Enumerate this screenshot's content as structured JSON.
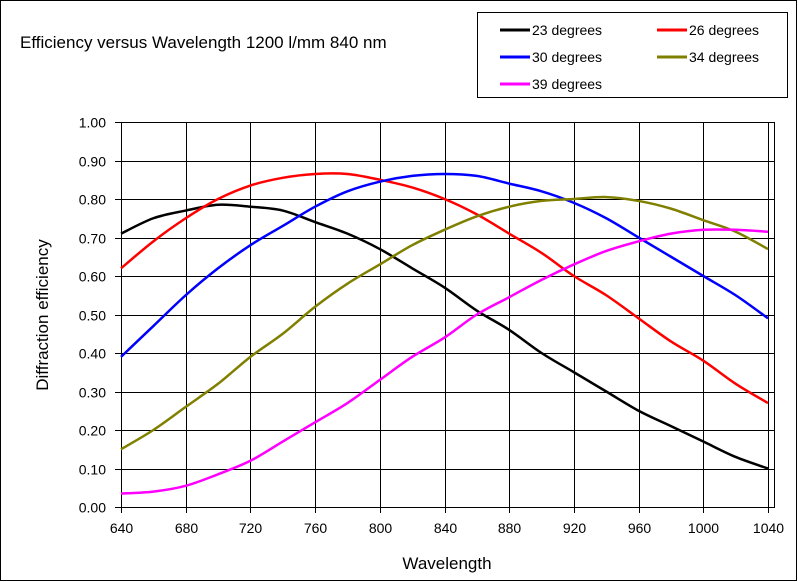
{
  "chart_data": {
    "type": "line",
    "title": "Efficiency versus Wavelength  1200 l/mm 840 nm",
    "xlabel": "Wavelength",
    "ylabel": "Diffraction efficiency",
    "xlim": [
      640,
      1040
    ],
    "ylim": [
      0,
      1.0
    ],
    "grid": true,
    "legend_position": "top-right",
    "x_ticks": [
      "640",
      "680",
      "720",
      "760",
      "800",
      "840",
      "880",
      "920",
      "960",
      "1000",
      "1040"
    ],
    "y_ticks": [
      "0.00",
      "0.10",
      "0.20",
      "0.30",
      "0.40",
      "0.50",
      "0.60",
      "0.70",
      "0.80",
      "0.90",
      "1.00"
    ],
    "x": [
      640,
      660,
      680,
      700,
      720,
      740,
      760,
      780,
      800,
      820,
      840,
      860,
      880,
      900,
      920,
      940,
      960,
      980,
      1000,
      1020,
      1040
    ],
    "series": [
      {
        "name": "23 degrees",
        "color": "#000000",
        "values": [
          0.71,
          0.75,
          0.77,
          0.785,
          0.78,
          0.77,
          0.74,
          0.71,
          0.67,
          0.62,
          0.57,
          0.51,
          0.46,
          0.4,
          0.35,
          0.3,
          0.25,
          0.21,
          0.17,
          0.13,
          0.1
        ]
      },
      {
        "name": "26 degrees",
        "color": "#ff0000",
        "values": [
          0.62,
          0.69,
          0.75,
          0.8,
          0.835,
          0.855,
          0.865,
          0.865,
          0.85,
          0.83,
          0.8,
          0.76,
          0.71,
          0.66,
          0.6,
          0.55,
          0.49,
          0.43,
          0.38,
          0.32,
          0.27
        ]
      },
      {
        "name": "30 degrees",
        "color": "#0000ff",
        "values": [
          0.39,
          0.47,
          0.55,
          0.62,
          0.68,
          0.73,
          0.78,
          0.82,
          0.845,
          0.86,
          0.865,
          0.86,
          0.84,
          0.82,
          0.79,
          0.75,
          0.7,
          0.65,
          0.6,
          0.55,
          0.49
        ]
      },
      {
        "name": "34 degrees",
        "color": "#808000",
        "values": [
          0.15,
          0.2,
          0.26,
          0.32,
          0.39,
          0.45,
          0.52,
          0.58,
          0.63,
          0.68,
          0.72,
          0.755,
          0.78,
          0.795,
          0.8,
          0.805,
          0.795,
          0.775,
          0.745,
          0.715,
          0.67
        ]
      },
      {
        "name": "39 degrees",
        "color": "#ff00ff",
        "values": [
          0.035,
          0.04,
          0.055,
          0.085,
          0.12,
          0.17,
          0.22,
          0.27,
          0.33,
          0.39,
          0.44,
          0.5,
          0.545,
          0.59,
          0.63,
          0.665,
          0.69,
          0.71,
          0.72,
          0.72,
          0.715
        ]
      }
    ]
  }
}
